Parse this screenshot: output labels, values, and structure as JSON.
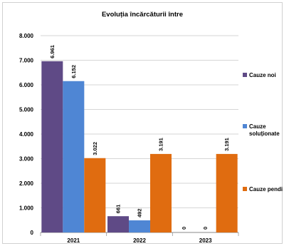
{
  "chart_data": {
    "type": "bar",
    "title": "Evoluția încărcăturii între",
    "categories": [
      "2021",
      "2022",
      "2023"
    ],
    "series": [
      {
        "name": "Cauze noi",
        "color": "#5f4a86",
        "values": [
          6961,
          661,
          0
        ],
        "labels": [
          "6.961",
          "661",
          "0"
        ]
      },
      {
        "name": "Cauze soluționate",
        "name_lines": [
          "Cauze",
          "soluționate"
        ],
        "color": "#4f86d4",
        "values": [
          6152,
          492,
          0
        ],
        "labels": [
          "6.152",
          "492",
          "0"
        ]
      },
      {
        "name": "Cauze pendi",
        "color": "#e06c10",
        "values": [
          3022,
          3191,
          3191
        ],
        "labels": [
          "3.022",
          "3.191",
          "3.191"
        ]
      }
    ],
    "ylim": [
      0,
      8000
    ],
    "yticks": [
      0,
      1000,
      2000,
      3000,
      4000,
      5000,
      6000,
      7000,
      8000
    ],
    "ytick_labels": [
      "0",
      "1.000",
      "2.000",
      "3.000",
      "4.000",
      "5.000",
      "6.000",
      "7.000",
      "8.000"
    ],
    "grid": true,
    "legend": "right"
  }
}
